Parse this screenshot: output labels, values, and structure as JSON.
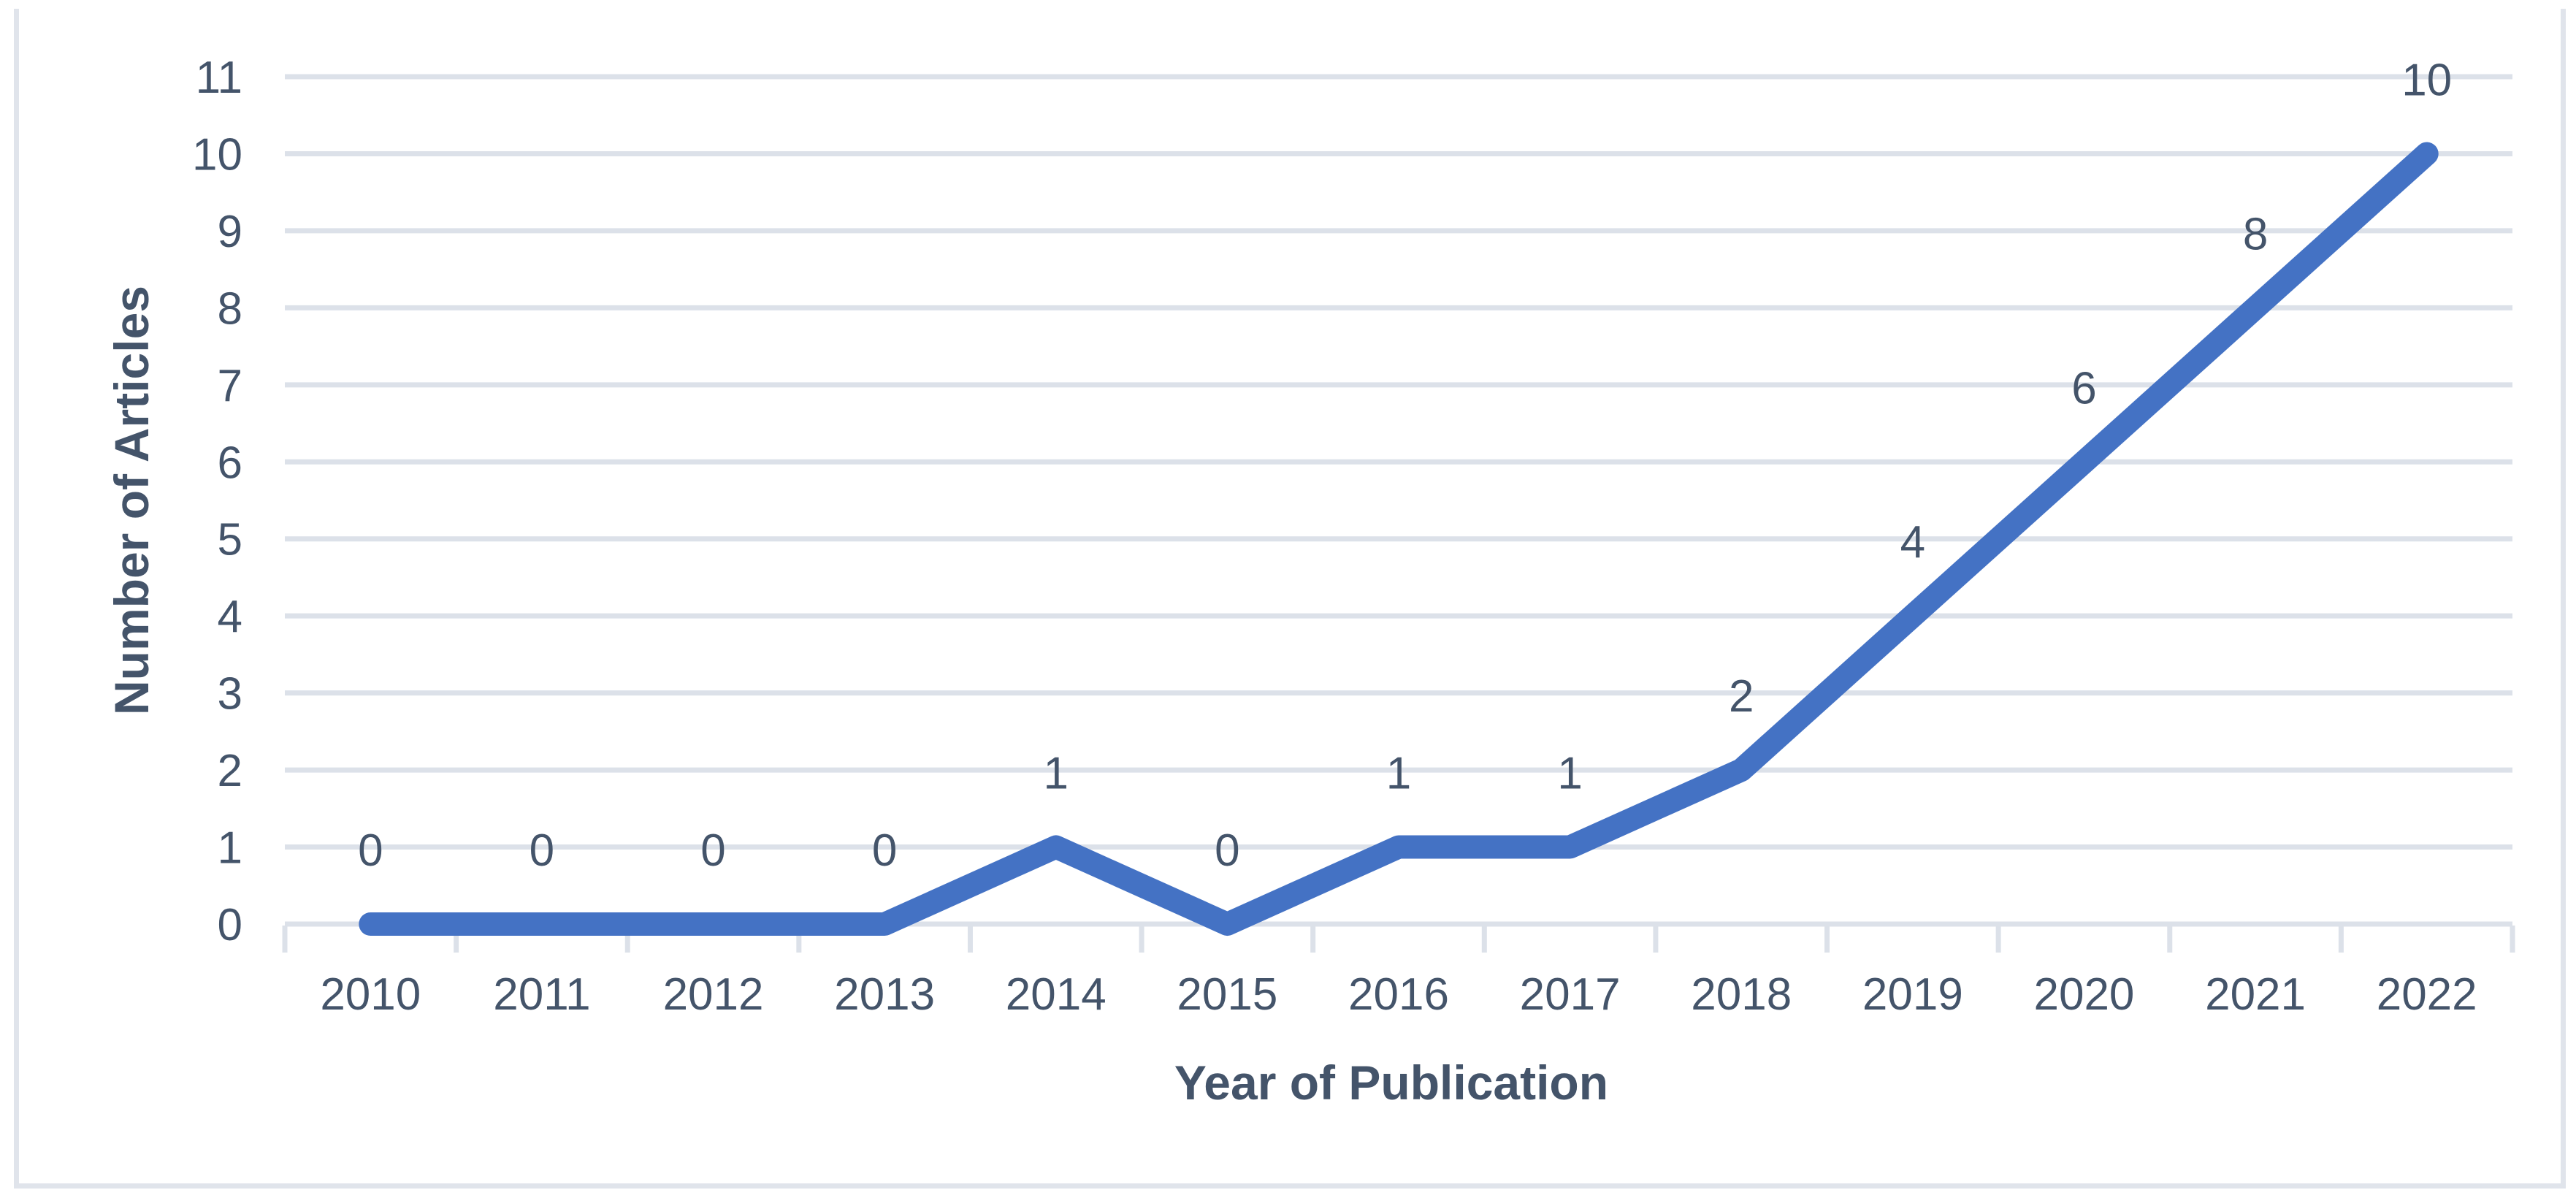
{
  "chart_data": {
    "type": "line",
    "title": "",
    "xlabel": "Year of Publication",
    "ylabel": "Number of Articles",
    "categories": [
      "2010",
      "2011",
      "2012",
      "2013",
      "2014",
      "2015",
      "2016",
      "2017",
      "2018",
      "2019",
      "2020",
      "2021",
      "2022"
    ],
    "series": [
      {
        "name": "Number of Articles",
        "values": [
          0,
          0,
          0,
          0,
          1,
          0,
          1,
          1,
          2,
          4,
          6,
          8,
          10
        ]
      }
    ],
    "data_labels": [
      0,
      0,
      0,
      0,
      1,
      0,
      1,
      1,
      2,
      4,
      6,
      8,
      10
    ],
    "data_labels_position": "above",
    "ylim": [
      0,
      11
    ],
    "ytick_step": 1,
    "yticks": [
      0,
      1,
      2,
      3,
      4,
      5,
      6,
      7,
      8,
      9,
      10,
      11
    ],
    "grid": "horizontal-major",
    "legend": "none",
    "markers": "none",
    "colors": {
      "line": "#4472C4",
      "axis_text": "#44546A",
      "label_text": "#44546A",
      "gridline": "#DCE1E9",
      "tick_mark": "#DCE1E9",
      "frame_border": "#E0E4EB",
      "background": "#FFFFFF"
    }
  }
}
